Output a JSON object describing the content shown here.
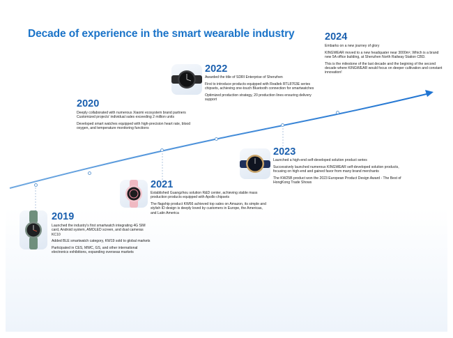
{
  "title": "Decade of experience in the smart wearable industry",
  "milestones": [
    {
      "year": "2019",
      "lines": [
        "Launched the industry's first smartwatch integrating 4G SIM card, Android system, AMOLED screen, and dual cameras KC10",
        "Added BLE smartwatch category, KW19 sold to global markets",
        "Participated in CES, MWC, GS, and other international electronics exhibitions, expanding overseas markets"
      ]
    },
    {
      "year": "2020",
      "lines": [
        "Deeply collaborated with numerous Xiaomi ecosystem brand partners Customized projects' individual sales exceeding 2 million units",
        "Developed smart watches equipped with high-precision heart rate, blood oxygen, and temperature monitoring functions"
      ]
    },
    {
      "year": "2021",
      "lines": [
        "Established Guangzhou solution R&D center, achieving stable mass production products equipped with Apollo chipsets",
        "The flagship product KW66 achieved top sales on Amazon, its simple and stylish ID design is deeply loved by customers in Europe, the Americas, and Latin America"
      ]
    },
    {
      "year": "2022",
      "lines": [
        "Awarded the title of SDRI Enterprise of Shenzhen",
        "First to introduce products equipped with Realtek RTL8763E series chipsets, achieving one-touch Bluetooth connection for smartwatches",
        "Optimized production strategy, 20 production lines ensuring delivery support"
      ]
    },
    {
      "year": "2023",
      "lines": [
        "Launched a high-end self-developed solution product series",
        "Successively launched numerous KINGWEAR self-developed solution products, focusing on high-end and gained favor from many brand merchants",
        "The KW25B product won the 2023 European Product Design Award - The Best of HongKong Trade Shows"
      ]
    },
    {
      "year": "2024",
      "lines": [
        "Embarks on a new journey of glory",
        "KINGWEAR moved to a new headquater near 3000m², Which is a brand new 5A office building, at Shenzhen North Railway Station CBD.",
        "This is the milestone of the last decade and the begining of the second decade where KINGWEAR would focus on deeper cultivation and constant innovation!"
      ]
    }
  ],
  "colors": {
    "title": "#1a73c8",
    "year": "#1a5fae",
    "timeline": "#2d7fd6"
  }
}
